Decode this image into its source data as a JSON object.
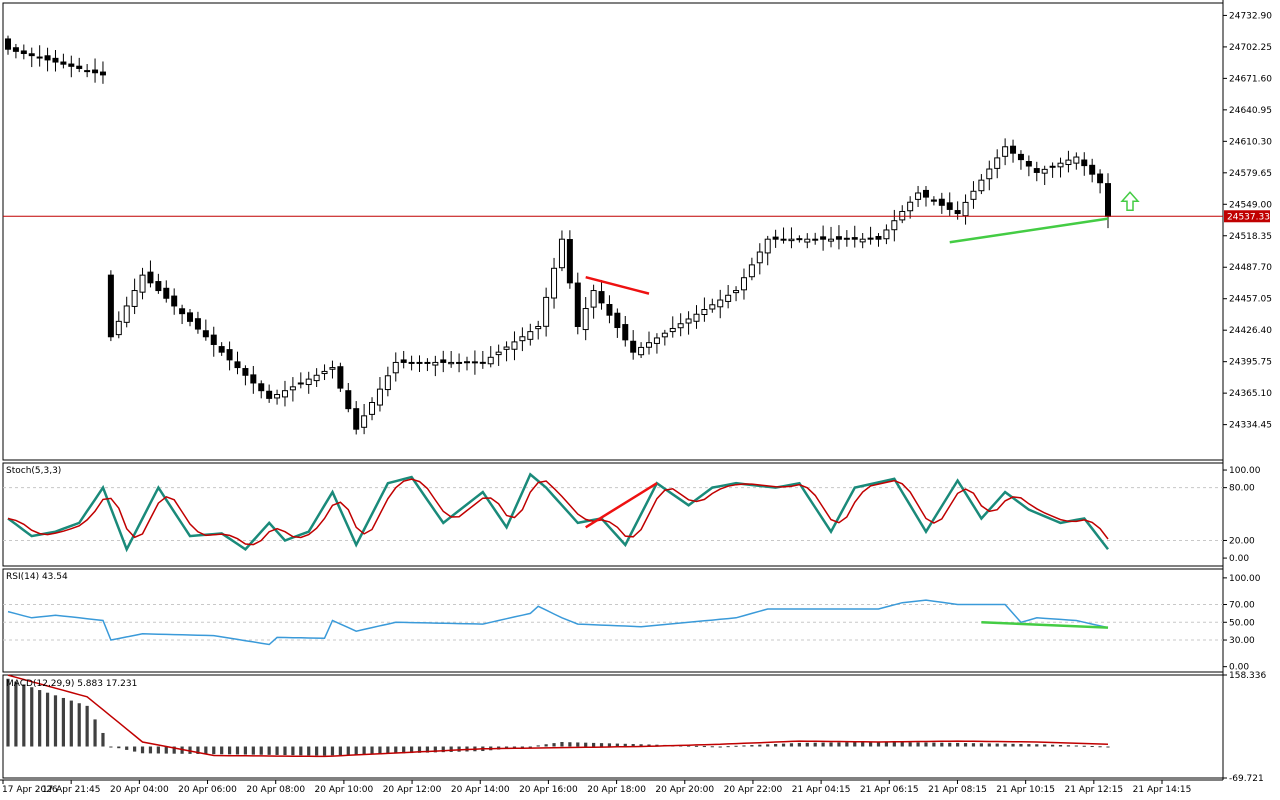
{
  "colors": {
    "background": "#ffffff",
    "frame": "#000000",
    "bull_candle": "#ffffff",
    "bear_candle": "#000000",
    "current_price_line": "#c00000",
    "stoch_main": "#1a8a7a",
    "stoch_signal": "#c00000",
    "rsi_line": "#3a9ad9",
    "macd_hist": "#404040",
    "macd_signal": "#c00000",
    "bearish_divergence": "#ee1111",
    "bullish_divergence": "#44cc44",
    "up_arrow": "#44cc44",
    "grid_dash": "#c8c8c8"
  },
  "price_axis": {
    "labels": [
      "24732.90",
      "24702.25",
      "24671.60",
      "24640.95",
      "24610.30",
      "24579.65",
      "24549.00",
      "24518.35",
      "24487.70",
      "24457.05",
      "24426.40",
      "24395.75",
      "24365.10",
      "24334.45"
    ],
    "ylim": [
      24300,
      24745
    ]
  },
  "current_price": {
    "value": 24537.33,
    "label": "24537.33"
  },
  "time_axis": {
    "labels": [
      "17 Apr 2026",
      "17 Apr 21:45",
      "20 Apr 04:00",
      "20 Apr 06:00",
      "20 Apr 08:00",
      "20 Apr 10:00",
      "20 Apr 12:00",
      "20 Apr 14:00",
      "20 Apr 16:00",
      "20 Apr 18:00",
      "20 Apr 20:00",
      "20 Apr 22:00",
      "21 Apr 04:15",
      "21 Apr 06:15",
      "21 Apr 08:15",
      "21 Apr 10:15",
      "21 Apr 12:15",
      "21 Apr 14:15"
    ]
  },
  "stoch": {
    "title": "Stoch(5,3,3)",
    "levels": [
      "100.00",
      "80.00",
      "20.00",
      "0.00"
    ],
    "ylim": [
      0,
      100
    ]
  },
  "rsi": {
    "title": "RSI(14) 43.54",
    "levels": [
      "100.00",
      "70.00",
      "50.00",
      "30.00",
      "0.00"
    ],
    "ylim": [
      0,
      100
    ]
  },
  "macd": {
    "title": "MACD(12,29,9) 5.883 17.231",
    "levels": [
      "158.336",
      "-69.721"
    ],
    "ylim": [
      -69.721,
      158.336
    ]
  },
  "chart_data": {
    "type": "candlestick",
    "title": "",
    "bar_count": 140,
    "current_price": 24537.33,
    "key_closes": [
      {
        "bar": 0,
        "close": 24700
      },
      {
        "bar": 12,
        "close": 24675
      },
      {
        "bar": 13,
        "close": 24420
      },
      {
        "bar": 17,
        "close": 24480
      },
      {
        "bar": 33,
        "close": 24360
      },
      {
        "bar": 41,
        "close": 24390
      },
      {
        "bar": 44,
        "close": 24330
      },
      {
        "bar": 49,
        "close": 24395
      },
      {
        "bar": 60,
        "close": 24395
      },
      {
        "bar": 67,
        "close": 24430
      },
      {
        "bar": 70,
        "close": 24515
      },
      {
        "bar": 72,
        "close": 24430
      },
      {
        "bar": 74,
        "close": 24465
      },
      {
        "bar": 79,
        "close": 24405
      },
      {
        "bar": 92,
        "close": 24465
      },
      {
        "bar": 96,
        "close": 24515
      },
      {
        "bar": 110,
        "close": 24515
      },
      {
        "bar": 115,
        "close": 24560
      },
      {
        "bar": 120,
        "close": 24540
      },
      {
        "bar": 126,
        "close": 24605
      },
      {
        "bar": 130,
        "close": 24580
      },
      {
        "bar": 135,
        "close": 24595
      },
      {
        "bar": 138,
        "close": 24570
      },
      {
        "bar": 139,
        "close": 24537.33
      }
    ],
    "stoch_pivots": [
      [
        0,
        45
      ],
      [
        3,
        25
      ],
      [
        6,
        30
      ],
      [
        9,
        40
      ],
      [
        12,
        80
      ],
      [
        15,
        10
      ],
      [
        19,
        80
      ],
      [
        23,
        25
      ],
      [
        27,
        28
      ],
      [
        30,
        10
      ],
      [
        33,
        40
      ],
      [
        35,
        20
      ],
      [
        38,
        30
      ],
      [
        41,
        75
      ],
      [
        44,
        15
      ],
      [
        48,
        85
      ],
      [
        51,
        92
      ],
      [
        55,
        40
      ],
      [
        60,
        75
      ],
      [
        63,
        35
      ],
      [
        66,
        95
      ],
      [
        68,
        80
      ],
      [
        72,
        40
      ],
      [
        75,
        45
      ],
      [
        78,
        15
      ],
      [
        82,
        85
      ],
      [
        86,
        60
      ],
      [
        89,
        80
      ],
      [
        92,
        85
      ],
      [
        97,
        80
      ],
      [
        100,
        85
      ],
      [
        104,
        30
      ],
      [
        107,
        80
      ],
      [
        112,
        90
      ],
      [
        116,
        30
      ],
      [
        120,
        88
      ],
      [
        123,
        45
      ],
      [
        126,
        75
      ],
      [
        129,
        55
      ],
      [
        133,
        40
      ],
      [
        136,
        45
      ],
      [
        139,
        10
      ]
    ],
    "rsi_pivots": [
      [
        0,
        62
      ],
      [
        3,
        55
      ],
      [
        6,
        58
      ],
      [
        12,
        52
      ],
      [
        13,
        30
      ],
      [
        17,
        37
      ],
      [
        26,
        35
      ],
      [
        33,
        25
      ],
      [
        34,
        33
      ],
      [
        40,
        32
      ],
      [
        41,
        52
      ],
      [
        44,
        40
      ],
      [
        49,
        50
      ],
      [
        60,
        48
      ],
      [
        66,
        60
      ],
      [
        67,
        68
      ],
      [
        70,
        55
      ],
      [
        72,
        48
      ],
      [
        80,
        45
      ],
      [
        92,
        55
      ],
      [
        96,
        65
      ],
      [
        110,
        65
      ],
      [
        113,
        72
      ],
      [
        116,
        75
      ],
      [
        120,
        70
      ],
      [
        126,
        70
      ],
      [
        128,
        50
      ],
      [
        130,
        55
      ],
      [
        135,
        52
      ],
      [
        139,
        44
      ]
    ],
    "macd_hist": [
      [
        0,
        150
      ],
      [
        4,
        125
      ],
      [
        10,
        90
      ],
      [
        13,
        0
      ],
      [
        17,
        -15
      ],
      [
        40,
        -20
      ],
      [
        60,
        -10
      ],
      [
        66,
        0
      ],
      [
        70,
        10
      ],
      [
        80,
        5
      ],
      [
        90,
        0
      ],
      [
        100,
        8
      ],
      [
        110,
        10
      ],
      [
        120,
        8
      ],
      [
        130,
        5
      ],
      [
        139,
        0
      ]
    ],
    "macd_signal_pts": [
      [
        0,
        158
      ],
      [
        10,
        110
      ],
      [
        17,
        10
      ],
      [
        26,
        -20
      ],
      [
        40,
        -22
      ],
      [
        60,
        -5
      ],
      [
        80,
        0
      ],
      [
        90,
        5
      ],
      [
        100,
        12
      ],
      [
        110,
        10
      ],
      [
        120,
        12
      ],
      [
        130,
        10
      ],
      [
        139,
        5
      ]
    ],
    "annotations": [
      {
        "kind": "bearish-divergence",
        "panel": "price",
        "from": [
          73,
          24478
        ],
        "to": [
          81,
          24462
        ]
      },
      {
        "kind": "bearish-divergence",
        "panel": "stoch",
        "from": [
          73,
          35
        ],
        "to": [
          82,
          85
        ]
      },
      {
        "kind": "bullish-divergence",
        "panel": "price",
        "from": [
          119,
          24512
        ],
        "to": [
          139,
          24535
        ]
      },
      {
        "kind": "bullish-divergence",
        "panel": "rsi",
        "from": [
          123,
          50
        ],
        "to": [
          139,
          44
        ]
      }
    ]
  }
}
